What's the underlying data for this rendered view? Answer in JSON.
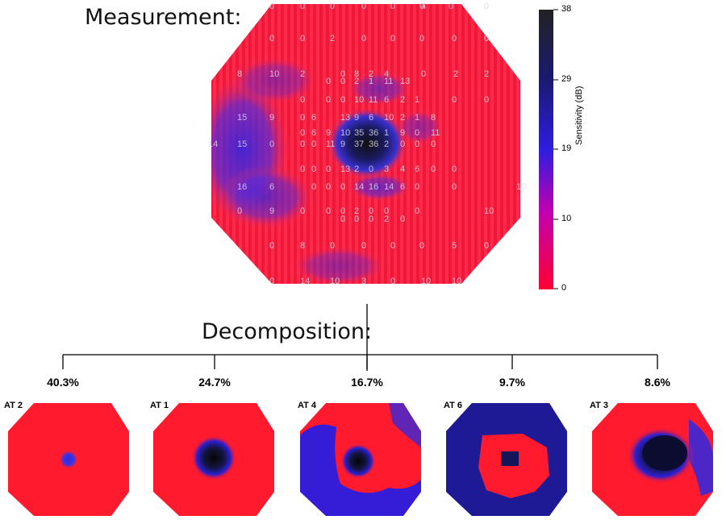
{
  "measurement_title": "Measurement:",
  "decomposition_title": "Decomposition:",
  "colorbar": {
    "title": "Sensitivity (dB)",
    "ticks": [
      "38",
      "29",
      "19",
      "10",
      "0"
    ],
    "colors": [
      "#ff0033",
      "#cc00aa",
      "#3322dd",
      "#1a1a66",
      "#2a2a2a"
    ]
  },
  "measurement_values": [
    [
      "0",
      "0",
      "0",
      "0",
      "0",
      "0",
      "0",
      "4",
      "0"
    ],
    [
      "0",
      "0",
      "2",
      "0",
      "0",
      "0",
      "0",
      "0"
    ],
    [
      "8",
      "10",
      "2",
      "0",
      "8",
      "2",
      "4",
      "0",
      "2",
      "2"
    ],
    [
      "0",
      "0",
      "2",
      "1",
      "11",
      "13"
    ],
    [
      "0",
      "0",
      "0",
      "10",
      "11",
      "6",
      "2",
      "1",
      "0",
      "0"
    ],
    [
      "15",
      "9",
      "0",
      "6",
      "13",
      "9",
      "6",
      "10",
      "2",
      "1",
      "8"
    ],
    [
      "0",
      "6",
      "9",
      "10",
      "35",
      "36",
      "1",
      "9",
      "0",
      "11"
    ],
    [
      "14",
      "15",
      "0",
      "0",
      "0",
      "11",
      "9",
      "37",
      "36",
      "2",
      "0",
      "0",
      "0"
    ],
    [
      "0",
      "0",
      "0",
      "13",
      "2",
      "0",
      "3",
      "4",
      "6",
      "0",
      "0"
    ],
    [
      "16",
      "6",
      "0",
      "0",
      "0",
      "14",
      "16",
      "14",
      "6",
      "0",
      "0",
      "10"
    ],
    [
      "0",
      "9",
      "0",
      "0",
      "0",
      "2",
      "0",
      "0",
      "0",
      "10"
    ],
    [
      "0",
      "0",
      "0",
      "2",
      "0"
    ],
    [
      "0",
      "8",
      "0",
      "0",
      "0",
      "0",
      "5",
      "0"
    ],
    [
      "0",
      "14",
      "10",
      "3",
      "0",
      "10",
      "10"
    ]
  ],
  "components": [
    {
      "label": "AT 2",
      "percent": "40.3%"
    },
    {
      "label": "AT 1",
      "percent": "24.7%"
    },
    {
      "label": "AT 4",
      "percent": "16.7%"
    },
    {
      "label": "AT 6",
      "percent": "9.7%"
    },
    {
      "label": "AT 3",
      "percent": "8.6%"
    }
  ]
}
